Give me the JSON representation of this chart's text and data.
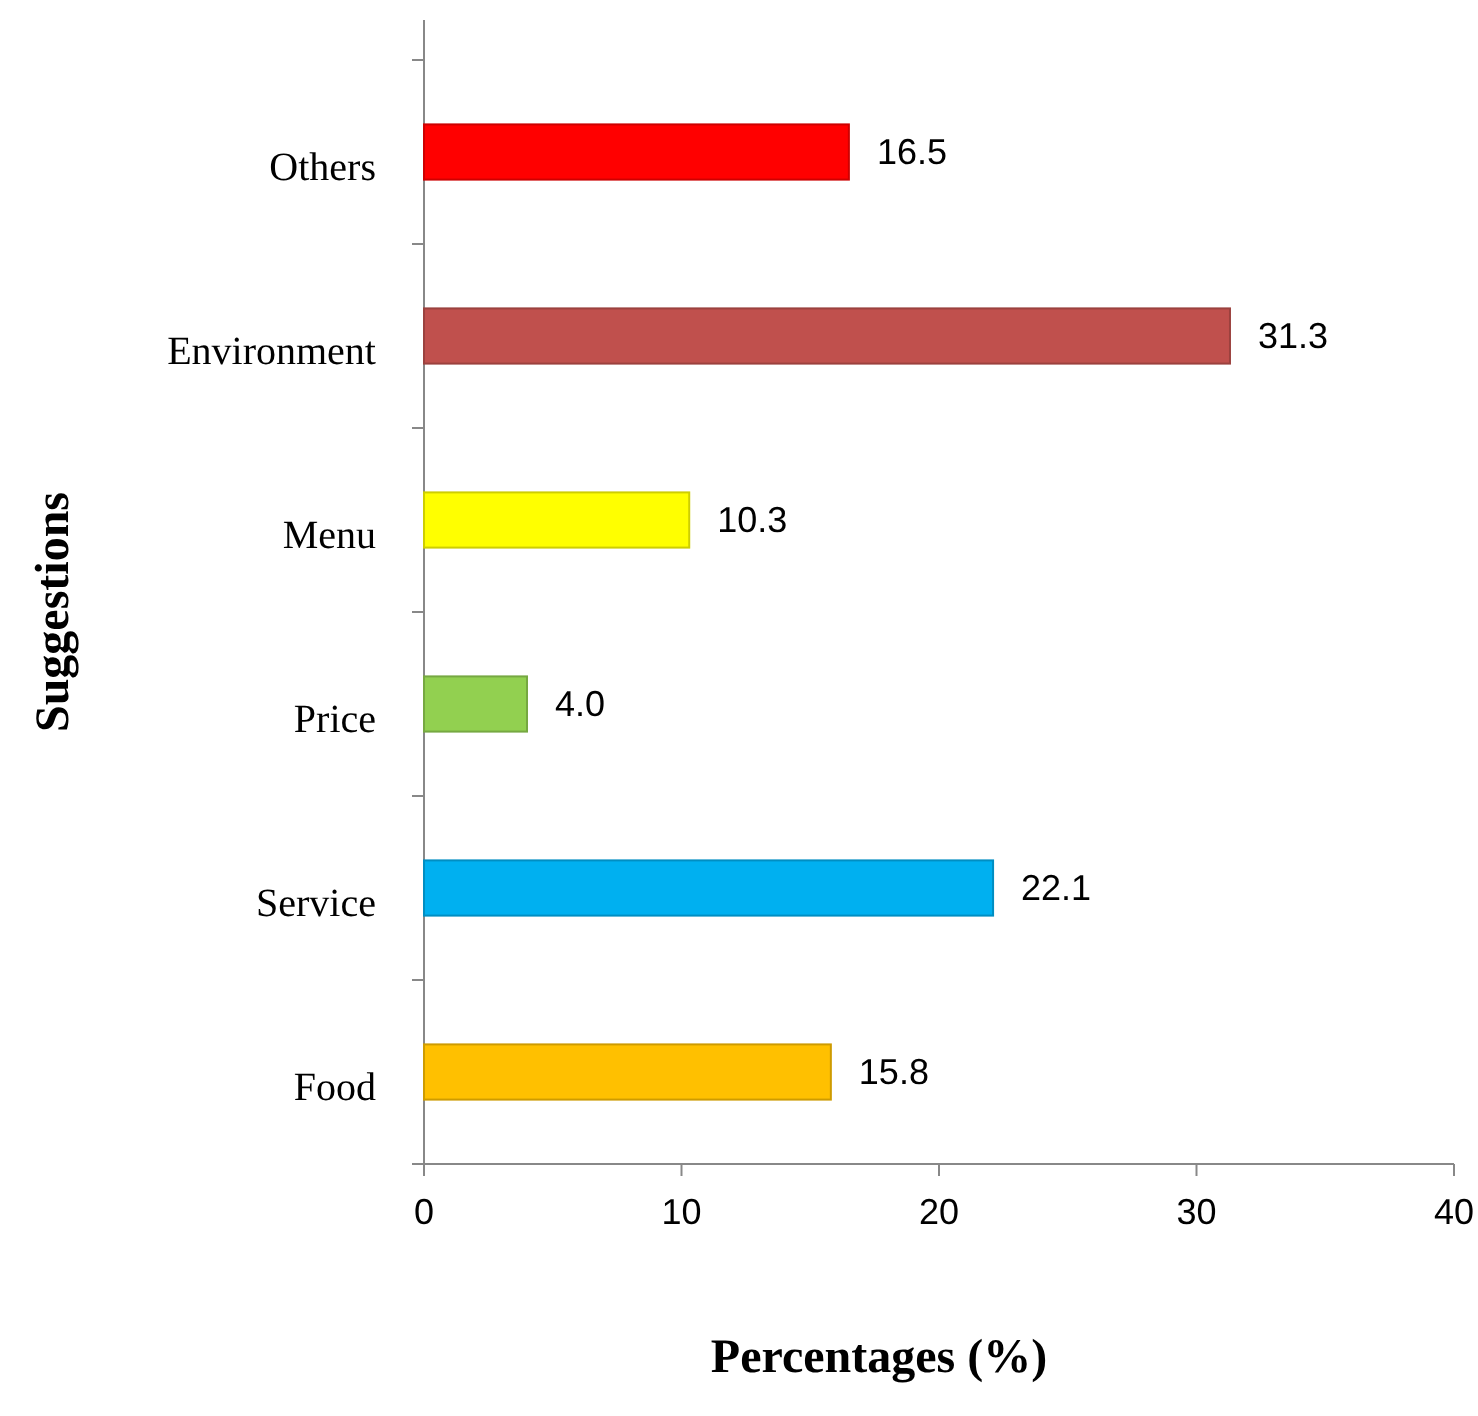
{
  "chart_data": {
    "type": "bar",
    "orientation": "horizontal",
    "xlabel": "Percentages (%)",
    "ylabel": "Suggestions",
    "categories": [
      "Others",
      "Environment",
      "Menu",
      "Price",
      "Service",
      "Food"
    ],
    "values": [
      16.5,
      31.3,
      10.3,
      4.0,
      22.1,
      15.8
    ],
    "value_labels": [
      "16.5",
      "31.3",
      "10.3",
      "4.0",
      "22.1",
      "15.8"
    ],
    "colors": [
      "#ff0000",
      "#c0504d",
      "#ffff00",
      "#92d050",
      "#00b0f0",
      "#ffc000"
    ],
    "xlim": [
      0,
      40
    ],
    "xticks": [
      0,
      10,
      20,
      30,
      40
    ],
    "grid": false
  }
}
